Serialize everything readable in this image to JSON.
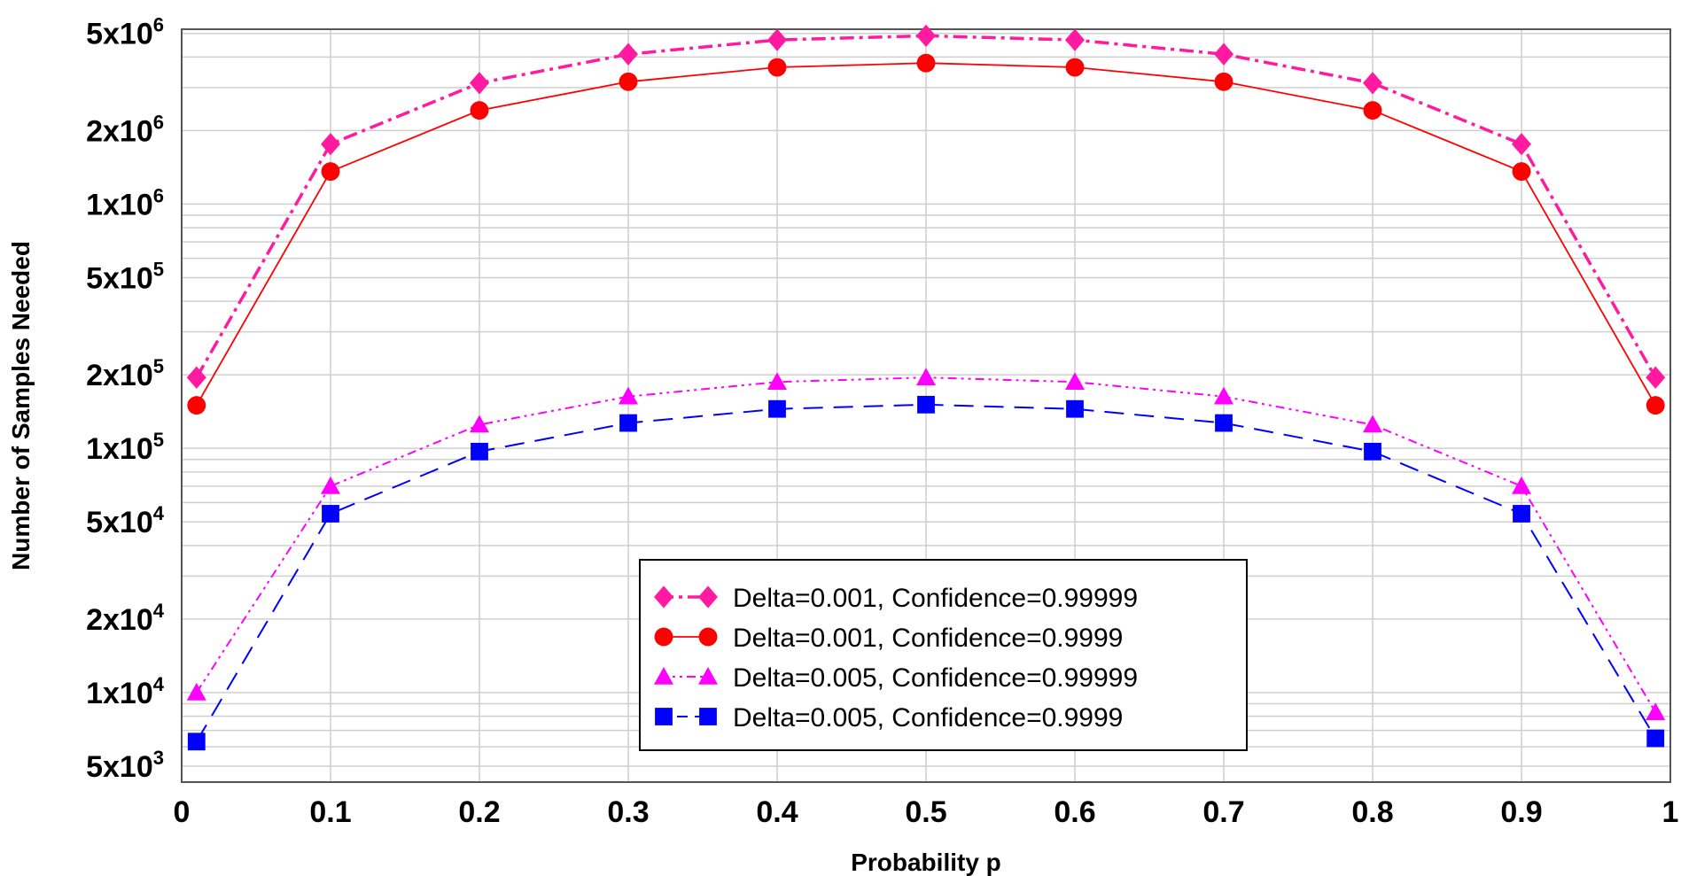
{
  "chart_data": {
    "type": "line",
    "title": "",
    "xlabel": "Probability  p",
    "ylabel": "Number of Samples Needed",
    "xlim": [
      0,
      1
    ],
    "ylim": [
      4300,
      5200000
    ],
    "y_scale": "log",
    "grid": true,
    "legend_position": "bottom-center",
    "x_ticks": [
      {
        "value": 0,
        "label": "0"
      },
      {
        "value": 0.1,
        "label": "0.1"
      },
      {
        "value": 0.2,
        "label": "0.2"
      },
      {
        "value": 0.3,
        "label": "0.3"
      },
      {
        "value": 0.4,
        "label": "0.4"
      },
      {
        "value": 0.5,
        "label": "0.5"
      },
      {
        "value": 0.6,
        "label": "0.6"
      },
      {
        "value": 0.7,
        "label": "0.7"
      },
      {
        "value": 0.8,
        "label": "0.8"
      },
      {
        "value": 0.9,
        "label": "0.9"
      },
      {
        "value": 1,
        "label": "1"
      }
    ],
    "y_ticks": [
      {
        "value": 5000,
        "mant": "5x10",
        "exp": "3"
      },
      {
        "value": 10000,
        "mant": "1x10",
        "exp": "4"
      },
      {
        "value": 20000,
        "mant": "2x10",
        "exp": "4"
      },
      {
        "value": 50000,
        "mant": "5x10",
        "exp": "4"
      },
      {
        "value": 100000,
        "mant": "1x10",
        "exp": "5"
      },
      {
        "value": 200000,
        "mant": "2x10",
        "exp": "5"
      },
      {
        "value": 500000,
        "mant": "5x10",
        "exp": "5"
      },
      {
        "value": 1000000,
        "mant": "1x10",
        "exp": "6"
      },
      {
        "value": 2000000,
        "mant": "2x10",
        "exp": "6"
      },
      {
        "value": 5000000,
        "mant": "5x10",
        "exp": "6"
      }
    ],
    "x": [
      0.01,
      0.1,
      0.2,
      0.3,
      0.4,
      0.5,
      0.6,
      0.7,
      0.8,
      0.9,
      0.99
    ],
    "series": [
      {
        "name": "Delta=0.001, Confidence=0.99999",
        "color": "#ff1aa0",
        "marker": "diamond",
        "dash": "dashdot",
        "values": [
          195000,
          1760000,
          3130000,
          4110000,
          4700000,
          4890000,
          4700000,
          4110000,
          3130000,
          1760000,
          195000
        ]
      },
      {
        "name": "Delta=0.001, Confidence=0.9999",
        "color": "#ff0000",
        "marker": "circle",
        "dash": "solid",
        "values": [
          150000,
          1360000,
          2420000,
          3170000,
          3630000,
          3780000,
          3630000,
          3170000,
          2420000,
          1360000,
          150000
        ]
      },
      {
        "name": "Delta=0.005, Confidence=0.99999",
        "color": "#ff00ff",
        "marker": "triangle",
        "dash": "dotdotdash",
        "values": [
          10000,
          70000,
          125000,
          163000,
          187000,
          195000,
          187000,
          163000,
          125000,
          70000,
          8300
        ]
      },
      {
        "name": "Delta=0.005, Confidence=0.9999",
        "color": "#0000ff",
        "marker": "square",
        "dash": "dash",
        "values": [
          6300,
          54000,
          97000,
          127000,
          145000,
          151000,
          145000,
          127000,
          97000,
          54000,
          6500
        ]
      }
    ]
  }
}
